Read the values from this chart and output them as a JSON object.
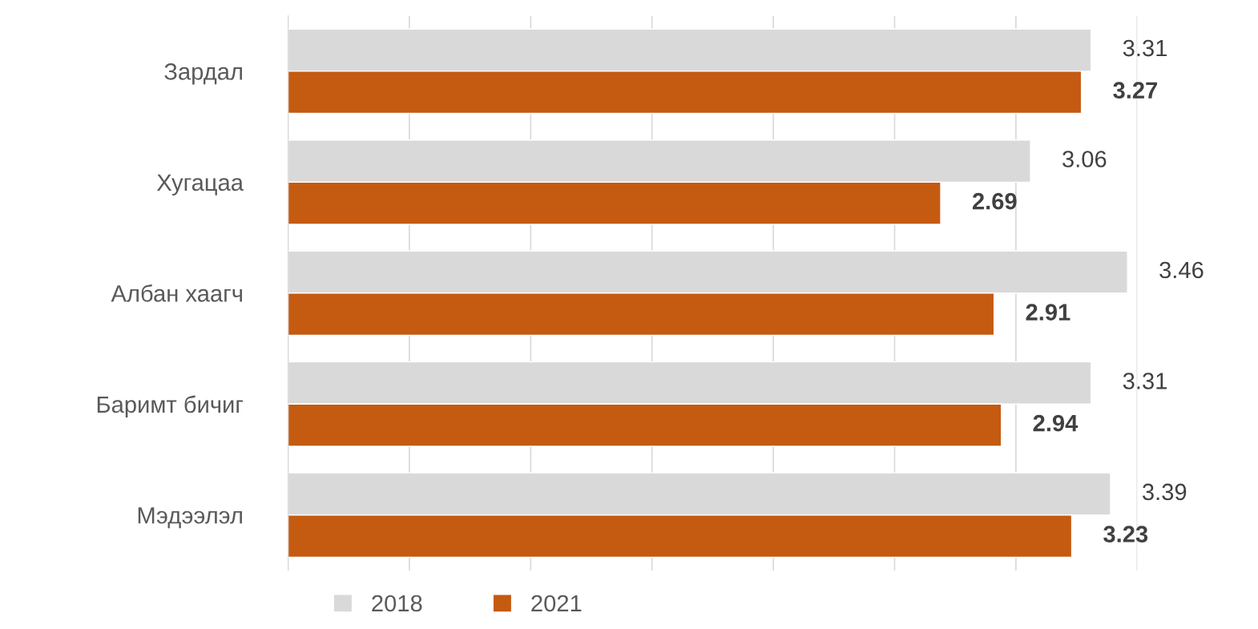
{
  "chart_data": {
    "type": "bar",
    "orientation": "horizontal",
    "categories": [
      "Зардал",
      "Хугацаа",
      "Албан хаагч",
      "Баримт бичиг",
      "Мэдээлэл"
    ],
    "series": [
      {
        "name": "2018",
        "color": "#d9d9d9",
        "values": [
          3.31,
          3.06,
          3.46,
          3.31,
          3.39
        ]
      },
      {
        "name": "2021",
        "color": "#c55a11",
        "values": [
          3.27,
          2.69,
          2.91,
          2.94,
          3.23
        ]
      }
    ],
    "xlim": [
      0,
      3.5
    ],
    "xticks": [
      {
        "value": 0,
        "label": null
      },
      {
        "value": 0.5,
        "label": null
      },
      {
        "value": 1,
        "label": null
      },
      {
        "value": 1.5,
        "label": null
      },
      {
        "value": 2,
        "label": null
      },
      {
        "value": 2.5,
        "label": null
      },
      {
        "value": 3,
        "label": null
      },
      {
        "value": 3.5,
        "label": null
      }
    ],
    "tick_labels": "y",
    "grid": "x",
    "legend": "bottom",
    "data_labels": true
  }
}
